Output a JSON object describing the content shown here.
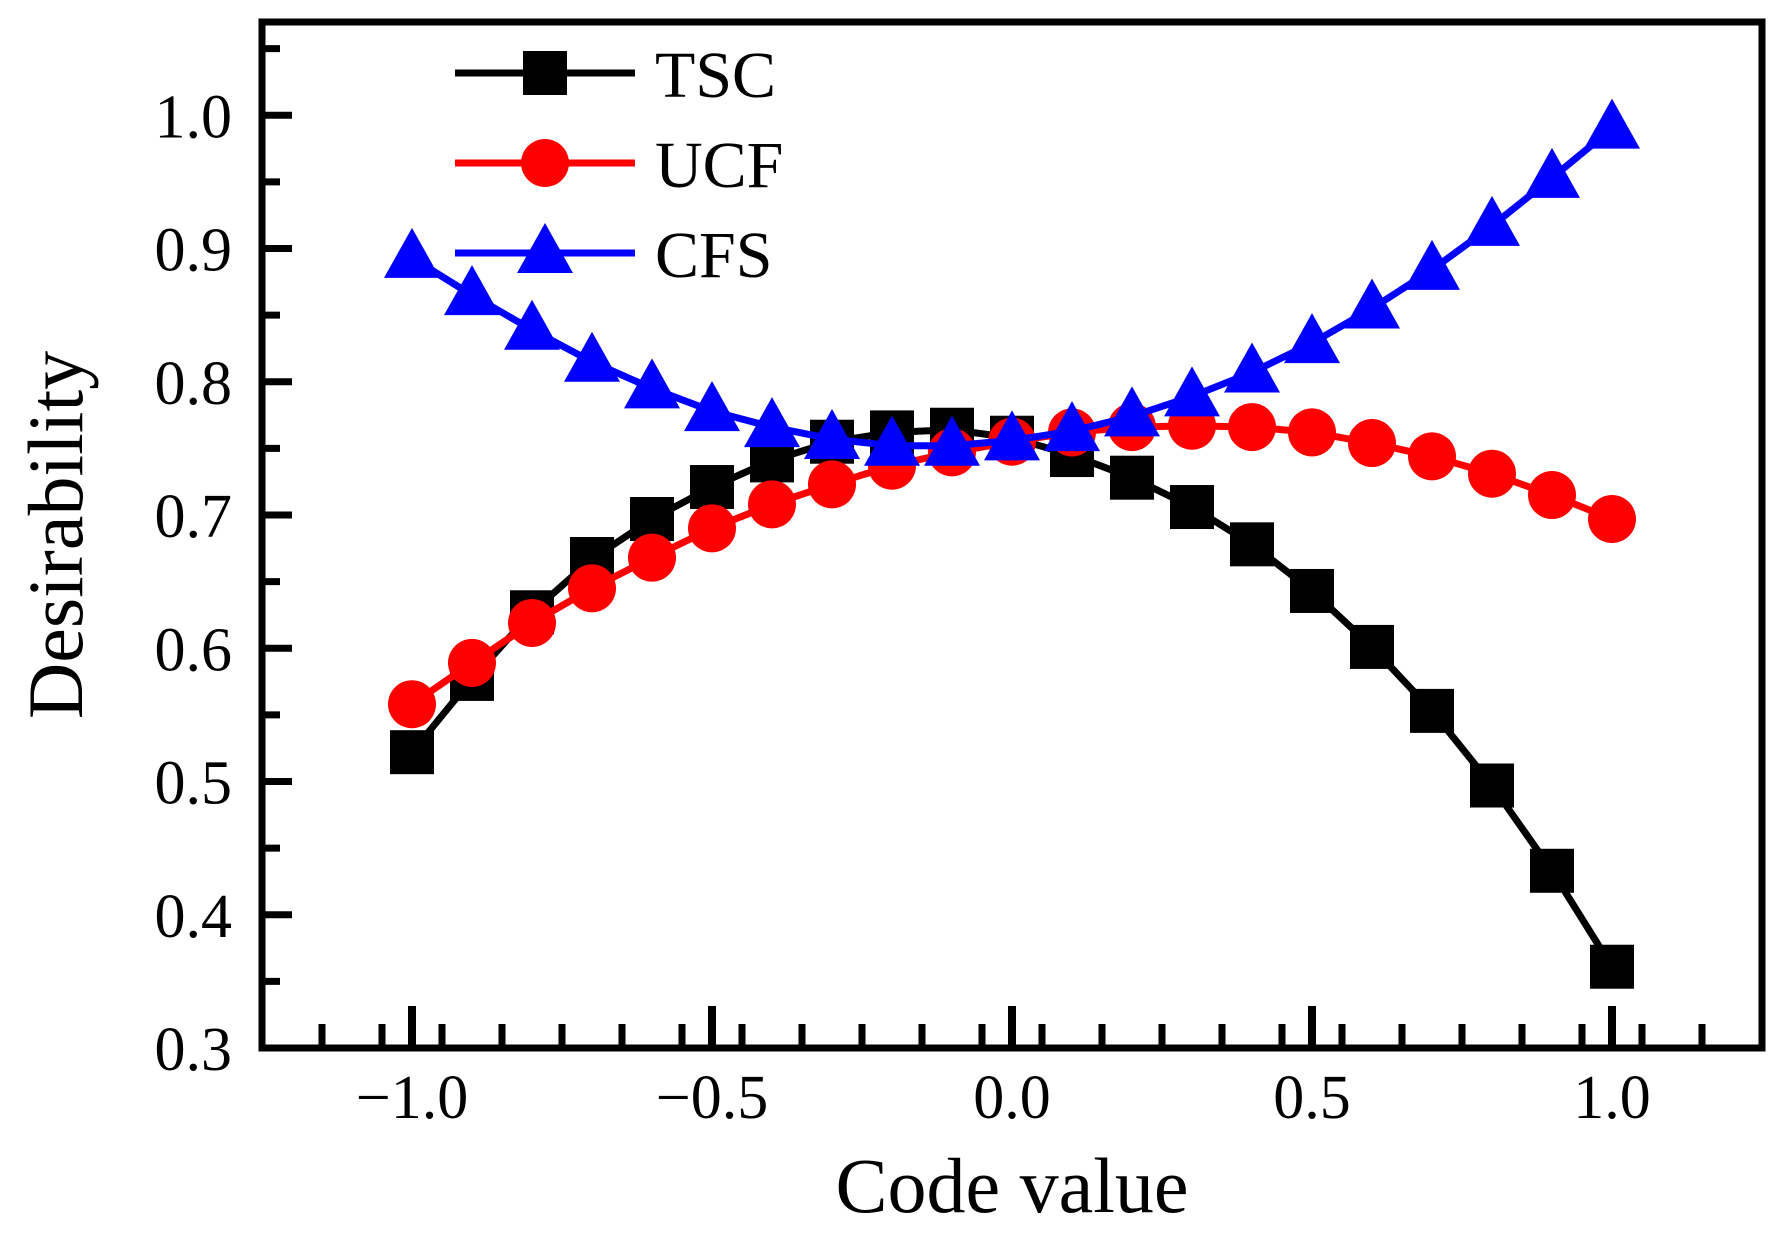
{
  "chart_data": {
    "type": "line",
    "title": "",
    "xlabel": "Code value",
    "ylabel": "Desirability",
    "xlim": [
      -1.25,
      1.25
    ],
    "ylim": [
      0.3,
      1.07
    ],
    "x_ticks": [
      -1.0,
      -0.5,
      0.0,
      0.5,
      1.0
    ],
    "x_tick_labels": [
      "−1.0",
      "−0.5",
      "0.0",
      "0.5",
      "1.0"
    ],
    "y_ticks": [
      0.3,
      0.4,
      0.5,
      0.6,
      0.7,
      0.8,
      0.9,
      1.0
    ],
    "y_tick_labels": [
      "0.3",
      "0.4",
      "0.5",
      "0.6",
      "0.7",
      "0.8",
      "0.9",
      "1.0"
    ],
    "legend_position": "top-left",
    "x": [
      -1.0,
      -0.9,
      -0.8,
      -0.7,
      -0.6,
      -0.5,
      -0.4,
      -0.3,
      -0.2,
      -0.1,
      0.0,
      0.1,
      0.2,
      0.3,
      0.4,
      0.5,
      0.6,
      0.7,
      0.8,
      0.9,
      1.0
    ],
    "series": [
      {
        "name": "TSC",
        "color": "#000000",
        "marker": "square",
        "values": [
          0.522,
          0.577,
          0.627,
          0.667,
          0.697,
          0.721,
          0.741,
          0.755,
          0.762,
          0.764,
          0.758,
          0.745,
          0.728,
          0.706,
          0.678,
          0.643,
          0.601,
          0.553,
          0.497,
          0.433,
          0.361
        ]
      },
      {
        "name": "UCF",
        "color": "#ff0000",
        "marker": "circle",
        "values": [
          0.558,
          0.589,
          0.619,
          0.645,
          0.668,
          0.69,
          0.708,
          0.723,
          0.737,
          0.747,
          0.755,
          0.762,
          0.766,
          0.767,
          0.766,
          0.762,
          0.754,
          0.744,
          0.731,
          0.715,
          0.697
        ]
      },
      {
        "name": "CFS",
        "color": "#0000ff",
        "marker": "triangle",
        "values": [
          0.893,
          0.865,
          0.839,
          0.815,
          0.795,
          0.778,
          0.766,
          0.757,
          0.752,
          0.752,
          0.756,
          0.763,
          0.774,
          0.789,
          0.807,
          0.829,
          0.855,
          0.884,
          0.917,
          0.953,
          0.99
        ]
      }
    ]
  }
}
